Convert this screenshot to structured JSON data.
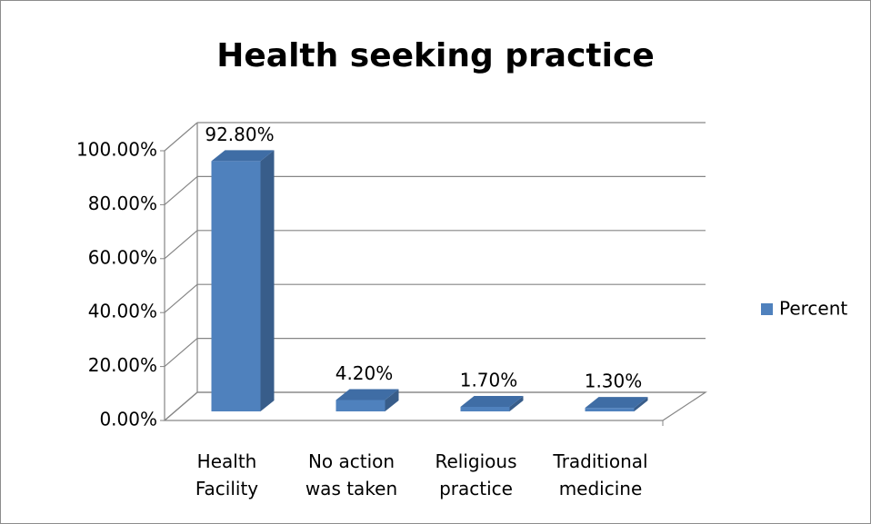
{
  "chart_data": {
    "type": "bar3d",
    "title": "Health seeking practice",
    "categories": [
      "Health Facility",
      "No action was taken",
      "Religious practice",
      "Traditional medicine"
    ],
    "series": [
      {
        "name": "Percent",
        "color": "#4f81bd",
        "values": [
          92.8,
          4.2,
          1.7,
          1.3
        ],
        "value_labels": [
          "92.80%",
          "4.20%",
          "1.70%",
          "1.30%"
        ]
      }
    ],
    "ylim": [
      0,
      100
    ],
    "yticks": [
      {
        "value": 0,
        "label": "0.00%"
      },
      {
        "value": 20,
        "label": "20.00%"
      },
      {
        "value": 40,
        "label": "40.00%"
      },
      {
        "value": 60,
        "label": "60.00%"
      },
      {
        "value": 80,
        "label": "80.00%"
      },
      {
        "value": 100,
        "label": "100.00%"
      }
    ],
    "grid": true,
    "legend": "right"
  }
}
